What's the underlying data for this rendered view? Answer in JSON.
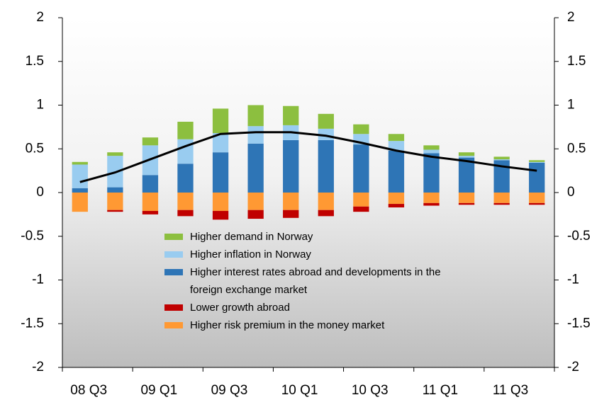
{
  "chart_data": {
    "type": "bar",
    "categories": [
      "08 Q3",
      null,
      "09 Q1",
      null,
      "09 Q3",
      null,
      "10 Q1",
      null,
      "10 Q3",
      null,
      "11 Q1",
      null,
      "11 Q3",
      null
    ],
    "series": [
      {
        "name": "Higher demand in Norway",
        "color": "#8cbf3f",
        "values": [
          0.03,
          0.04,
          0.09,
          0.2,
          0.28,
          0.24,
          0.22,
          0.17,
          0.11,
          0.08,
          0.05,
          0.04,
          0.03,
          0.02
        ]
      },
      {
        "name": "Higher inflation in Norway",
        "color": "#99ccf0",
        "values": [
          0.27,
          0.36,
          0.34,
          0.28,
          0.22,
          0.2,
          0.17,
          0.13,
          0.12,
          0.11,
          0.04,
          0.02,
          0.01,
          0.01
        ]
      },
      {
        "name": "Higher interest rates abroad and developments in the foreign exchange market",
        "color": "#2e75b6",
        "values": [
          0.05,
          0.06,
          0.2,
          0.33,
          0.46,
          0.56,
          0.6,
          0.6,
          0.55,
          0.48,
          0.45,
          0.4,
          0.37,
          0.34
        ]
      },
      {
        "name": "Lower growth abroad",
        "color": "#c00000",
        "values": [
          0,
          -0.02,
          -0.04,
          -0.07,
          -0.1,
          -0.1,
          -0.09,
          -0.07,
          -0.06,
          -0.04,
          -0.03,
          -0.02,
          -0.02,
          -0.02
        ]
      },
      {
        "name": "Higher risk premium in the money market",
        "color": "#ff9933",
        "values": [
          -0.22,
          -0.2,
          -0.21,
          -0.2,
          -0.21,
          -0.2,
          -0.2,
          -0.2,
          -0.16,
          -0.13,
          -0.12,
          -0.12,
          -0.12,
          -0.12
        ]
      },
      {
        "type": "line",
        "color": "#000000",
        "values": [
          0.12,
          0.23,
          0.38,
          0.53,
          0.67,
          0.69,
          0.69,
          0.65,
          0.57,
          0.48,
          0.41,
          0.36,
          0.3,
          0.25
        ]
      }
    ],
    "ylim": [
      -2,
      2
    ],
    "yticks": [
      -2,
      -1.5,
      -1,
      -0.5,
      0,
      0.5,
      1,
      1.5,
      2
    ],
    "y2lim": [
      -2,
      2
    ],
    "y2ticks": [
      -2,
      -1.5,
      -1,
      -0.5,
      0,
      0.5,
      1,
      1.5,
      2
    ]
  }
}
